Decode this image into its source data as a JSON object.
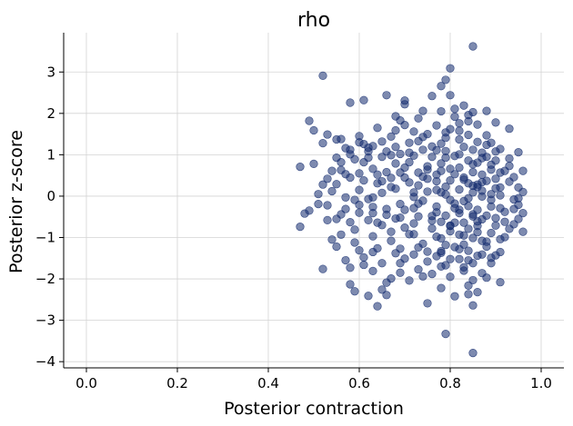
{
  "chart_data": {
    "type": "scatter",
    "title": "rho",
    "xlabel": "Posterior contraction",
    "ylabel": "Posterior z-score",
    "xlim": [
      -0.05,
      1.05
    ],
    "ylim": [
      -4.15,
      3.95
    ],
    "xticks": [
      0.0,
      0.2,
      0.4,
      0.6,
      0.8,
      1.0
    ],
    "xtick_labels": [
      "0.0",
      "0.2",
      "0.4",
      "0.6",
      "0.8",
      "1.0"
    ],
    "yticks": [
      -4,
      -3,
      -2,
      -1,
      0,
      1,
      2,
      3
    ],
    "ytick_labels": [
      "−4",
      "−3",
      "−2",
      "−1",
      "0",
      "1",
      "2",
      "3"
    ],
    "grid": true,
    "marker_color": "#132a6e",
    "marker_alpha": 0.55,
    "points": [
      [
        0.85,
        3.62
      ],
      [
        0.8,
        3.09
      ],
      [
        0.52,
        2.91
      ],
      [
        0.79,
        2.81
      ],
      [
        0.78,
        2.66
      ],
      [
        0.8,
        2.44
      ],
      [
        0.76,
        2.42
      ],
      [
        0.66,
        2.44
      ],
      [
        0.61,
        2.32
      ],
      [
        0.7,
        2.31
      ],
      [
        0.7,
        2.22
      ],
      [
        0.58,
        2.26
      ],
      [
        0.83,
        2.19
      ],
      [
        0.78,
        2.05
      ],
      [
        0.74,
        2.06
      ],
      [
        0.88,
        2.06
      ],
      [
        0.81,
        2.11
      ],
      [
        0.85,
        2.03
      ],
      [
        0.68,
        1.93
      ],
      [
        0.69,
        1.83
      ],
      [
        0.73,
        1.88
      ],
      [
        0.86,
        1.73
      ],
      [
        0.9,
        1.78
      ],
      [
        0.49,
        1.82
      ],
      [
        0.64,
        1.65
      ],
      [
        0.7,
        1.72
      ],
      [
        0.81,
        1.92
      ],
      [
        0.84,
        1.96
      ],
      [
        0.5,
        1.59
      ],
      [
        0.53,
        1.49
      ],
      [
        0.93,
        1.63
      ],
      [
        0.55,
        1.37
      ],
      [
        0.52,
        1.28
      ],
      [
        0.56,
        1.38
      ],
      [
        0.6,
        1.3
      ],
      [
        0.61,
        1.26
      ],
      [
        0.67,
        1.44
      ],
      [
        0.75,
        1.5
      ],
      [
        0.79,
        1.54
      ],
      [
        0.82,
        1.58
      ],
      [
        0.57,
        1.16
      ],
      [
        0.62,
        1.08
      ],
      [
        0.58,
        1.12
      ],
      [
        0.68,
        1.19
      ],
      [
        0.71,
        1.29
      ],
      [
        0.73,
        1.33
      ],
      [
        0.76,
        1.2
      ],
      [
        0.88,
        1.24
      ],
      [
        0.91,
        1.14
      ],
      [
        0.95,
        1.06
      ],
      [
        0.47,
        0.71
      ],
      [
        0.5,
        0.78
      ],
      [
        0.55,
        0.93
      ],
      [
        0.59,
        0.89
      ],
      [
        0.62,
        0.93
      ],
      [
        0.65,
        0.95
      ],
      [
        0.69,
        1.02
      ],
      [
        0.72,
        0.98
      ],
      [
        0.79,
        1.09
      ],
      [
        0.82,
        1.01
      ],
      [
        0.87,
        0.92
      ],
      [
        0.9,
        0.86
      ],
      [
        0.56,
        0.63
      ],
      [
        0.6,
        0.55
      ],
      [
        0.63,
        0.66
      ],
      [
        0.66,
        0.58
      ],
      [
        0.7,
        0.69
      ],
      [
        0.75,
        0.72
      ],
      [
        0.78,
        0.61
      ],
      [
        0.85,
        0.77
      ],
      [
        0.89,
        0.64
      ],
      [
        0.93,
        0.73
      ],
      [
        0.96,
        0.61
      ],
      [
        0.53,
        0.42
      ],
      [
        0.55,
        0.29
      ],
      [
        0.58,
        0.45
      ],
      [
        0.61,
        0.38
      ],
      [
        0.64,
        0.31
      ],
      [
        0.67,
        0.44
      ],
      [
        0.71,
        0.33
      ],
      [
        0.74,
        0.47
      ],
      [
        0.77,
        0.36
      ],
      [
        0.83,
        0.4
      ],
      [
        0.86,
        0.28
      ],
      [
        0.9,
        0.42
      ],
      [
        0.93,
        0.35
      ],
      [
        0.51,
        0.05
      ],
      [
        0.54,
        0.12
      ],
      [
        0.57,
        -0.03
      ],
      [
        0.6,
        0.15
      ],
      [
        0.62,
        -0.07
      ],
      [
        0.65,
        0.08
      ],
      [
        0.68,
        0.18
      ],
      [
        0.72,
        -0.02
      ],
      [
        0.75,
        0.11
      ],
      [
        0.79,
        0.04
      ],
      [
        0.84,
        -0.05
      ],
      [
        0.87,
        0.13
      ],
      [
        0.91,
        0.02
      ],
      [
        0.94,
        -0.08
      ],
      [
        0.96,
        0.1
      ],
      [
        0.48,
        -0.42
      ],
      [
        0.49,
        -0.35
      ],
      [
        0.53,
        -0.22
      ],
      [
        0.57,
        -0.31
      ],
      [
        0.6,
        -0.4
      ],
      [
        0.63,
        -0.26
      ],
      [
        0.66,
        -0.45
      ],
      [
        0.7,
        -0.33
      ],
      [
        0.73,
        -0.18
      ],
      [
        0.77,
        -0.39
      ],
      [
        0.81,
        -0.29
      ],
      [
        0.85,
        -0.44
      ],
      [
        0.89,
        -0.25
      ],
      [
        0.92,
        -0.38
      ],
      [
        0.95,
        -0.21
      ],
      [
        0.47,
        -0.74
      ],
      [
        0.55,
        -0.55
      ],
      [
        0.58,
        -0.63
      ],
      [
        0.62,
        -0.58
      ],
      [
        0.65,
        -0.7
      ],
      [
        0.69,
        -0.52
      ],
      [
        0.72,
        -0.66
      ],
      [
        0.76,
        -0.59
      ],
      [
        0.8,
        -0.72
      ],
      [
        0.86,
        -0.61
      ],
      [
        0.9,
        -0.53
      ],
      [
        0.94,
        -0.68
      ],
      [
        0.96,
        -0.86
      ],
      [
        0.54,
        -1.05
      ],
      [
        0.56,
        -0.93
      ],
      [
        0.59,
        -1.12
      ],
      [
        0.63,
        -0.97
      ],
      [
        0.67,
        -1.08
      ],
      [
        0.71,
        -0.92
      ],
      [
        0.74,
        -1.15
      ],
      [
        0.78,
        -1.02
      ],
      [
        0.83,
        -0.95
      ],
      [
        0.88,
        -1.1
      ],
      [
        0.92,
        -0.99
      ],
      [
        0.55,
        -1.22
      ],
      [
        0.6,
        -1.31
      ],
      [
        0.64,
        -1.26
      ],
      [
        0.68,
        -1.38
      ],
      [
        0.73,
        -1.24
      ],
      [
        0.78,
        -1.33
      ],
      [
        0.82,
        -1.28
      ],
      [
        0.87,
        -1.41
      ],
      [
        0.91,
        -1.35
      ],
      [
        0.57,
        -1.55
      ],
      [
        0.61,
        -1.48
      ],
      [
        0.65,
        -1.62
      ],
      [
        0.7,
        -1.51
      ],
      [
        0.75,
        -1.58
      ],
      [
        0.79,
        -1.67
      ],
      [
        0.84,
        -1.55
      ],
      [
        0.89,
        -1.49
      ],
      [
        0.52,
        -1.76
      ],
      [
        0.58,
        -1.73
      ],
      [
        0.63,
        -1.81
      ],
      [
        0.69,
        -1.85
      ],
      [
        0.73,
        -1.77
      ],
      [
        0.78,
        -1.7
      ],
      [
        0.83,
        -1.8
      ],
      [
        0.87,
        -1.86
      ],
      [
        0.8,
        -1.95
      ],
      [
        0.85,
        -2.03
      ],
      [
        0.91,
        -2.08
      ],
      [
        0.71,
        -2.04
      ],
      [
        0.66,
        -2.09
      ],
      [
        0.58,
        -2.13
      ],
      [
        0.59,
        -2.3
      ],
      [
        0.62,
        -2.41
      ],
      [
        0.65,
        -2.26
      ],
      [
        0.66,
        -2.39
      ],
      [
        0.64,
        -2.66
      ],
      [
        0.78,
        -2.22
      ],
      [
        0.81,
        -2.42
      ],
      [
        0.84,
        -2.37
      ],
      [
        0.86,
        -2.32
      ],
      [
        0.75,
        -2.59
      ],
      [
        0.85,
        -2.64
      ],
      [
        0.79,
        -3.33
      ],
      [
        0.85,
        -3.79
      ],
      [
        0.82,
        1.37
      ],
      [
        0.84,
        1.48
      ],
      [
        0.86,
        1.31
      ],
      [
        0.83,
        1.19
      ],
      [
        0.85,
        1.12
      ],
      [
        0.87,
        1.05
      ],
      [
        0.81,
        0.97
      ],
      [
        0.84,
        0.86
      ],
      [
        0.86,
        0.81
      ],
      [
        0.82,
        0.69
      ],
      [
        0.85,
        0.58
      ],
      [
        0.87,
        0.52
      ],
      [
        0.83,
        0.45
      ],
      [
        0.8,
        0.38
      ],
      [
        0.84,
        0.31
      ],
      [
        0.86,
        0.22
      ],
      [
        0.82,
        0.16
      ],
      [
        0.85,
        0.09
      ],
      [
        0.87,
        -0.01
      ],
      [
        0.83,
        -0.12
      ],
      [
        0.81,
        -0.18
      ],
      [
        0.84,
        -0.24
      ],
      [
        0.86,
        -0.33
      ],
      [
        0.82,
        -0.41
      ],
      [
        0.85,
        -0.49
      ],
      [
        0.87,
        -0.56
      ],
      [
        0.83,
        -0.64
      ],
      [
        0.8,
        -0.71
      ],
      [
        0.84,
        -0.79
      ],
      [
        0.86,
        -0.87
      ],
      [
        0.82,
        -0.93
      ],
      [
        0.85,
        -1.01
      ],
      [
        0.87,
        -1.08
      ],
      [
        0.83,
        -1.17
      ],
      [
        0.81,
        -1.23
      ],
      [
        0.84,
        -1.32
      ],
      [
        0.86,
        -1.44
      ],
      [
        0.82,
        -1.52
      ],
      [
        0.85,
        -1.62
      ],
      [
        0.83,
        -1.72
      ],
      [
        0.8,
        1.62
      ],
      [
        0.79,
        1.41
      ],
      [
        0.78,
        1.27
      ],
      [
        0.77,
        1.11
      ],
      [
        0.79,
        0.93
      ],
      [
        0.78,
        0.79
      ],
      [
        0.8,
        0.66
      ],
      [
        0.77,
        0.52
      ],
      [
        0.79,
        0.23
      ],
      [
        0.78,
        0.09
      ],
      [
        0.8,
        -0.09
      ],
      [
        0.77,
        -0.25
      ],
      [
        0.79,
        -0.47
      ],
      [
        0.78,
        -0.62
      ],
      [
        0.8,
        -0.85
      ],
      [
        0.77,
        -0.98
      ],
      [
        0.79,
        -1.18
      ],
      [
        0.78,
        -1.37
      ],
      [
        0.8,
        -1.52
      ],
      [
        0.77,
        -1.45
      ],
      [
        0.88,
        1.47
      ],
      [
        0.89,
        1.29
      ],
      [
        0.9,
        1.08
      ],
      [
        0.88,
        0.95
      ],
      [
        0.89,
        0.76
      ],
      [
        0.91,
        0.57
      ],
      [
        0.88,
        0.37
      ],
      [
        0.9,
        0.19
      ],
      [
        0.89,
        -0.09
      ],
      [
        0.91,
        -0.29
      ],
      [
        0.88,
        -0.47
      ],
      [
        0.9,
        -0.71
      ],
      [
        0.89,
        -0.89
      ],
      [
        0.91,
        -1.04
      ],
      [
        0.88,
        -1.22
      ],
      [
        0.9,
        -1.43
      ],
      [
        0.89,
        -1.62
      ],
      [
        0.76,
        0.95
      ],
      [
        0.75,
        0.42
      ],
      [
        0.74,
        -0.11
      ],
      [
        0.76,
        -0.78
      ],
      [
        0.75,
        -1.34
      ],
      [
        0.74,
        1.12
      ],
      [
        0.73,
        0.57
      ],
      [
        0.72,
        0.09
      ],
      [
        0.73,
        -0.49
      ],
      [
        0.72,
        -0.92
      ],
      [
        0.71,
        1.05
      ],
      [
        0.7,
        0.45
      ],
      [
        0.69,
        -0.19
      ],
      [
        0.7,
        -0.76
      ],
      [
        0.69,
        -1.27
      ],
      [
        0.68,
        0.79
      ],
      [
        0.67,
        0.22
      ],
      [
        0.66,
        -0.31
      ],
      [
        0.67,
        -0.86
      ],
      [
        0.66,
        1.08
      ],
      [
        0.64,
        0.52
      ],
      [
        0.63,
        -0.03
      ],
      [
        0.64,
        -0.64
      ],
      [
        0.61,
        0.82
      ],
      [
        0.6,
        -0.21
      ],
      [
        0.59,
        -0.81
      ],
      [
        0.57,
        0.53
      ],
      [
        0.56,
        -0.44
      ],
      [
        0.93,
        0.91
      ],
      [
        0.94,
        0.46
      ],
      [
        0.95,
        0.21
      ],
      [
        0.94,
        -0.31
      ],
      [
        0.95,
        -0.55
      ],
      [
        0.93,
        -0.79
      ],
      [
        0.92,
        0.61
      ],
      [
        0.96,
        -0.41
      ],
      [
        0.63,
        1.21
      ],
      [
        0.65,
        1.32
      ],
      [
        0.74,
        1.43
      ],
      [
        0.77,
        1.71
      ],
      [
        0.84,
        1.81
      ],
      [
        0.82,
        1.76
      ],
      [
        0.72,
        1.56
      ],
      [
        0.68,
        1.59
      ],
      [
        0.6,
        1.45
      ],
      [
        0.63,
        -1.35
      ],
      [
        0.61,
        -1.66
      ],
      [
        0.69,
        -1.62
      ],
      [
        0.72,
        -1.41
      ],
      [
        0.76,
        -1.88
      ],
      [
        0.84,
        -2.16
      ],
      [
        0.88,
        -1.97
      ],
      [
        0.74,
        -1.94
      ],
      [
        0.67,
        -1.99
      ],
      [
        0.53,
        -0.58
      ],
      [
        0.51,
        -0.19
      ],
      [
        0.52,
        0.28
      ],
      [
        0.54,
        0.61
      ],
      [
        0.56,
        0.82
      ],
      [
        0.58,
        1.01
      ],
      [
        0.62,
        1.17
      ],
      [
        0.67,
        0.99
      ],
      [
        0.71,
        0.82
      ],
      [
        0.75,
        0.64
      ],
      [
        0.81,
        0.53
      ],
      [
        0.87,
        0.34
      ],
      [
        0.91,
        0.21
      ],
      [
        0.95,
        -0.05
      ],
      [
        0.92,
        -0.62
      ],
      [
        0.86,
        -0.72
      ],
      [
        0.81,
        -0.64
      ],
      [
        0.76,
        -0.48
      ],
      [
        0.72,
        -0.29
      ],
      [
        0.68,
        -0.54
      ],
      [
        0.63,
        -0.41
      ],
      [
        0.59,
        -0.09
      ],
      [
        0.65,
        0.36
      ],
      [
        0.69,
        0.57
      ],
      [
        0.73,
        0.26
      ],
      [
        0.77,
        0.15
      ],
      [
        0.82,
        -0.33
      ],
      [
        0.85,
        0.25
      ],
      [
        0.89,
        0.05
      ]
    ]
  }
}
